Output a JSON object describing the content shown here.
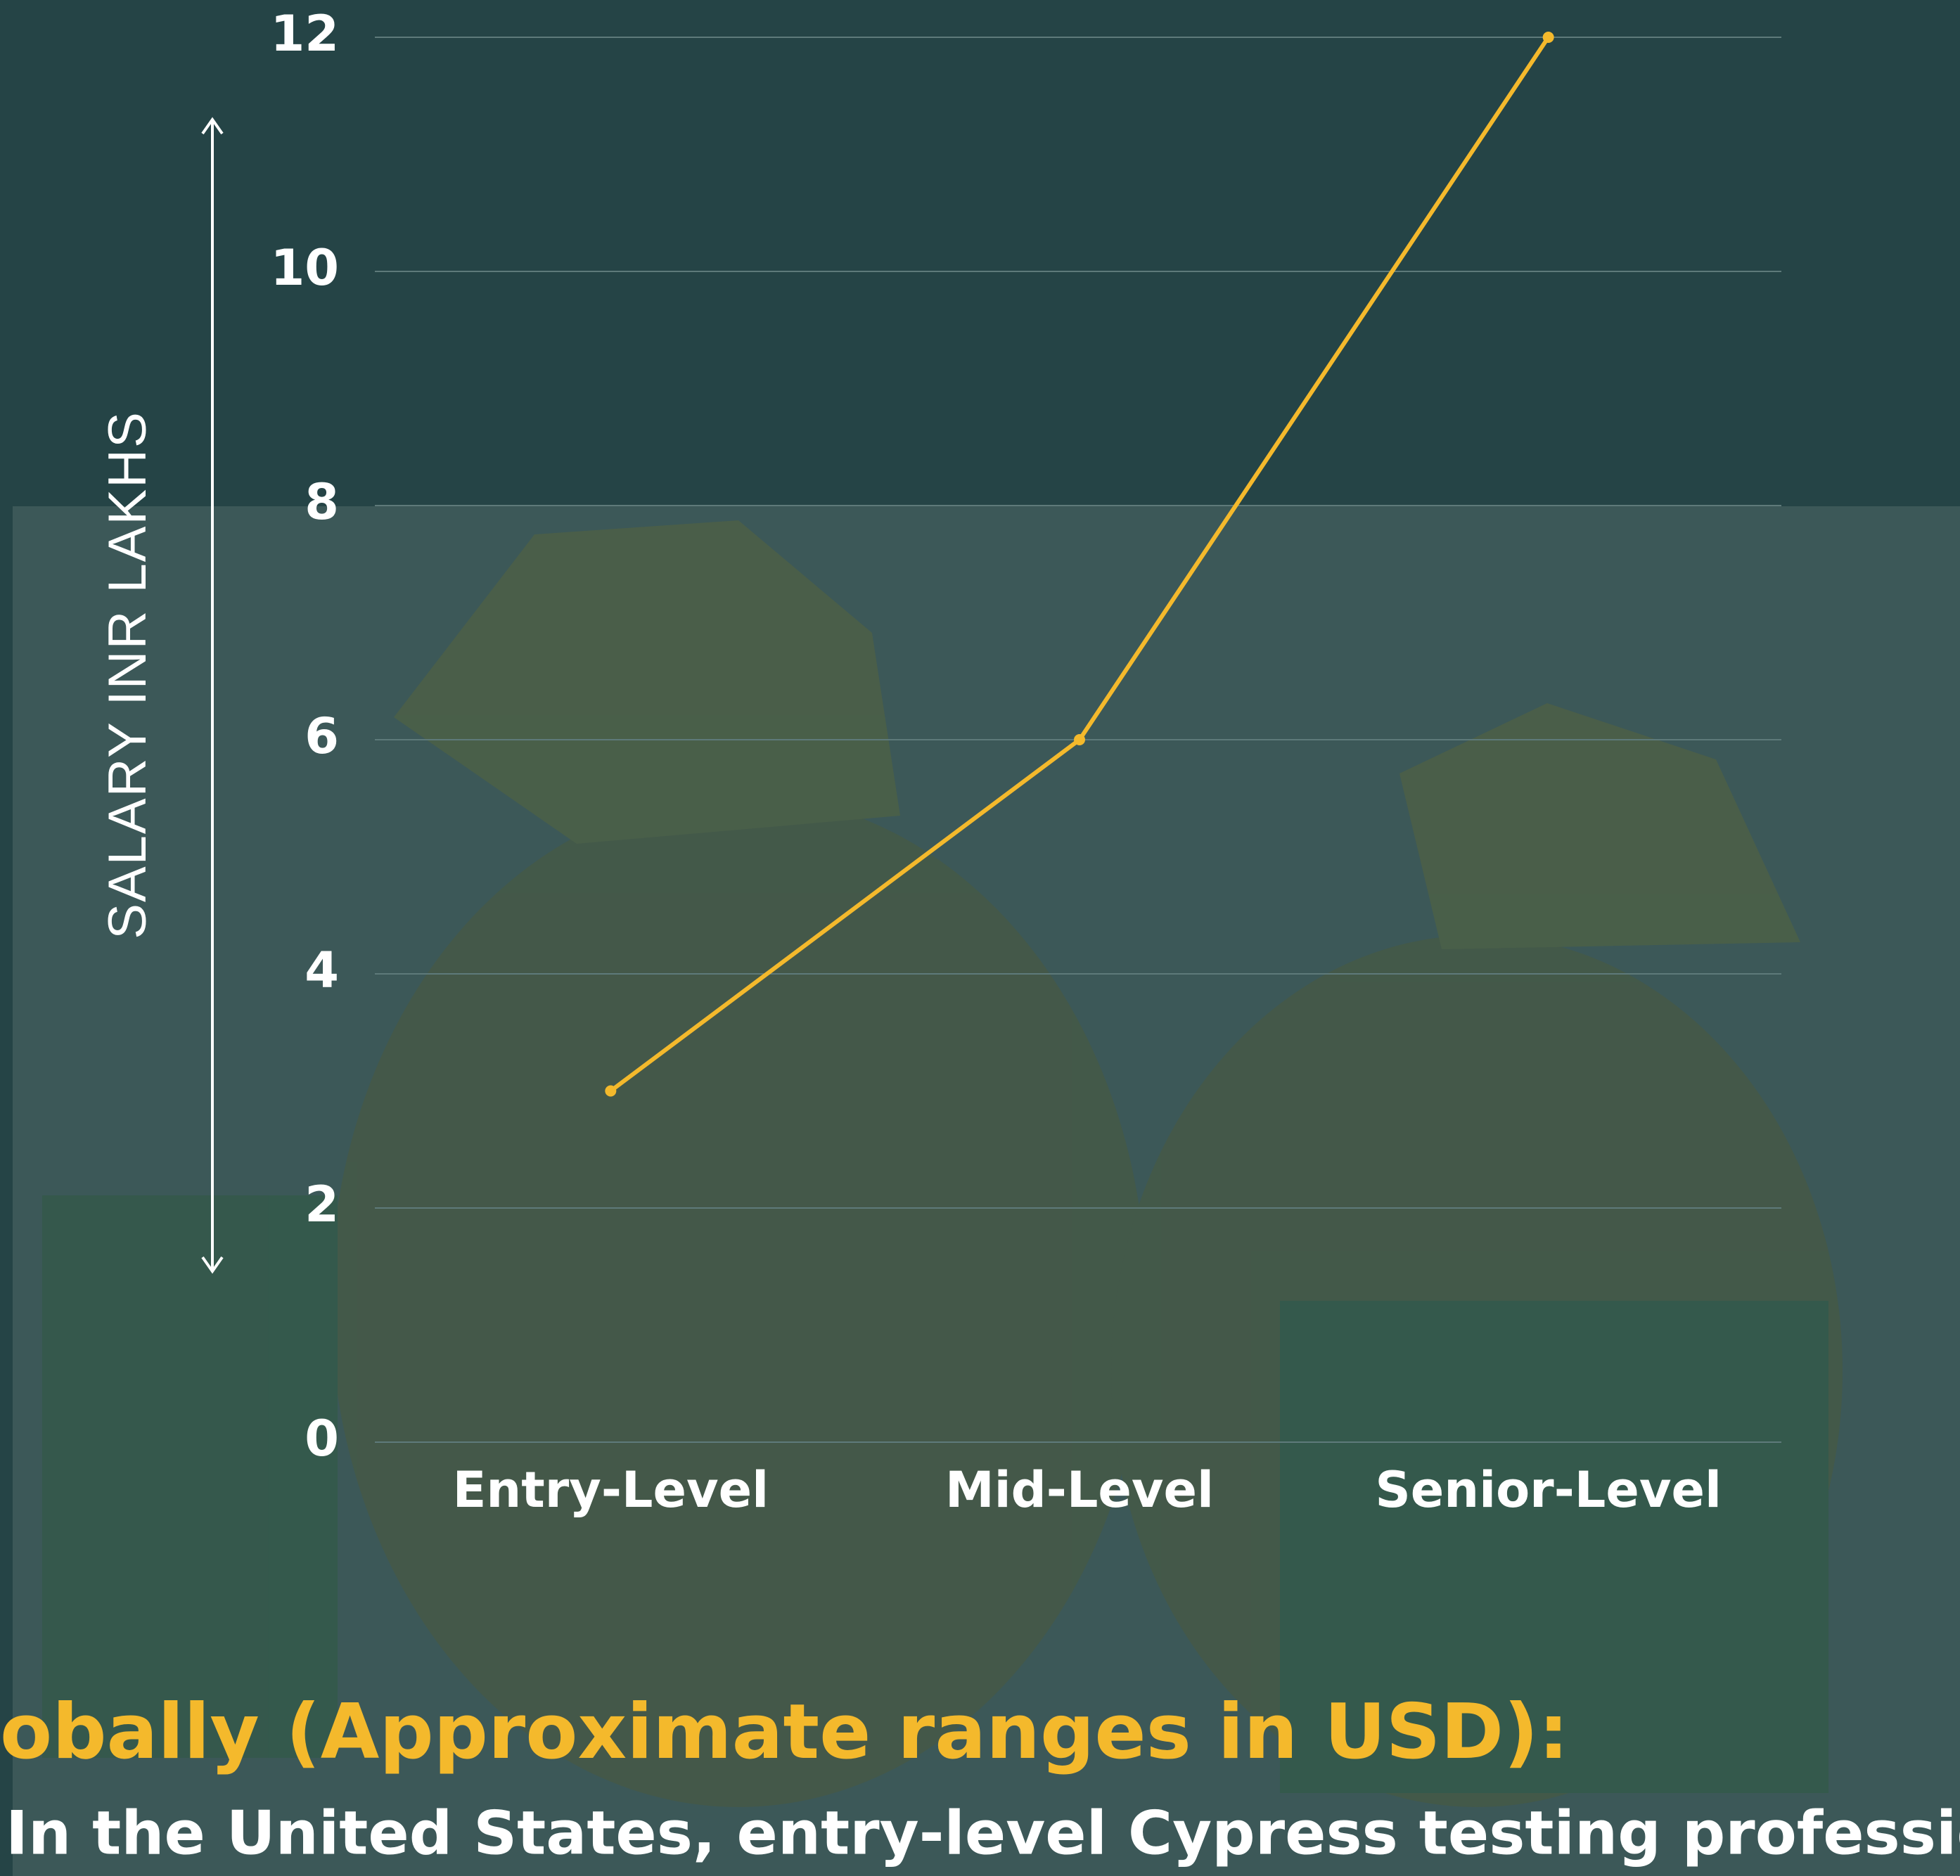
{
  "chart_data": {
    "type": "line",
    "y_label": "SALARY INR LAKHS",
    "categories": [
      "Entry-Level",
      "Mid-Level",
      "Senior-Level"
    ],
    "values": [
      3,
      6,
      12
    ],
    "color": "#f4b92c",
    "ylim": [
      0,
      12
    ],
    "yticks": [
      0,
      2,
      4,
      6,
      8,
      10,
      12
    ],
    "grid": true
  },
  "footer": {
    "heading": "obally (Approximate ranges in USD):",
    "text": "In the United States, entry-level Cypress testing professiona"
  }
}
